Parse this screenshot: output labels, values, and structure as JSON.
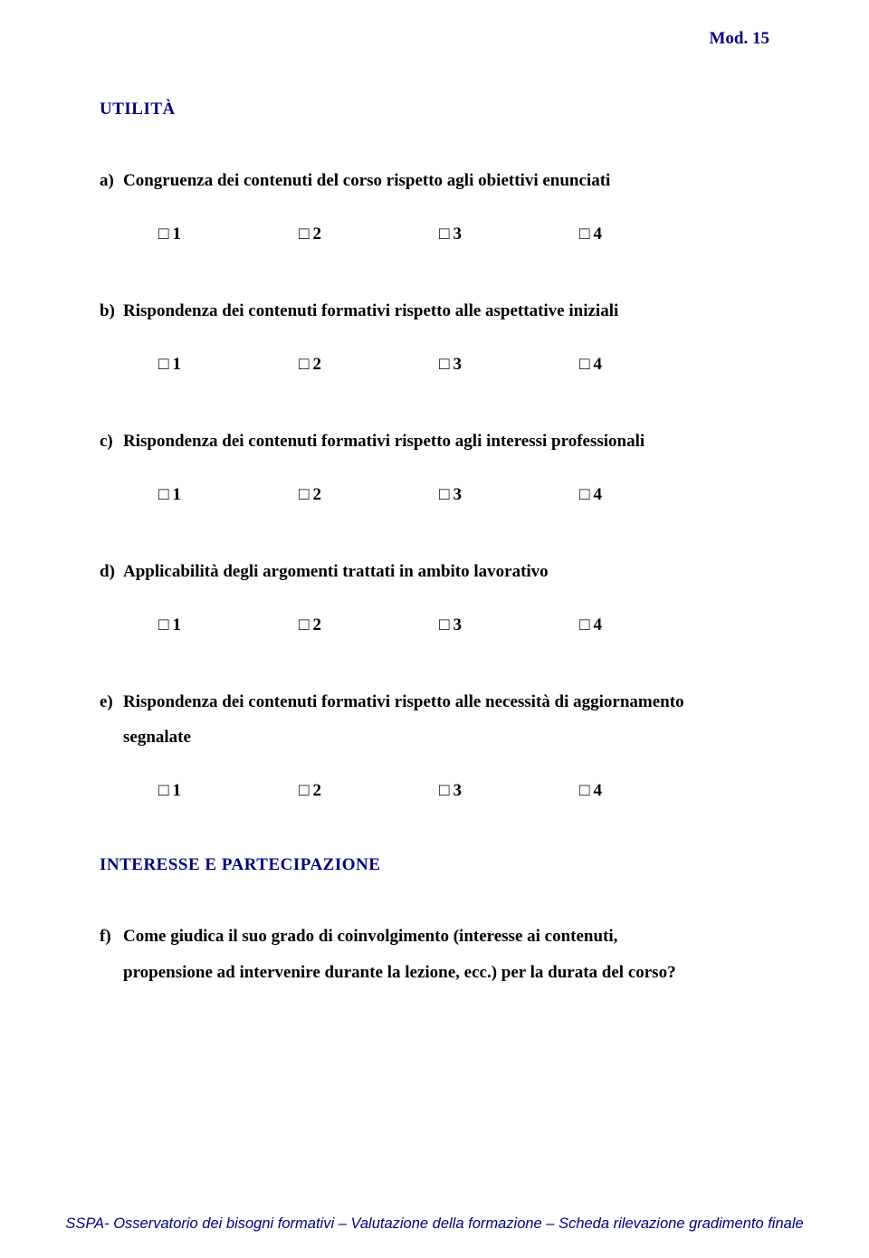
{
  "page": {
    "header_right": "Mod. 15",
    "footer": "SSPA- Osservatorio dei bisogni formativi – Valutazione della formazione – Scheda rilevazione gradimento finale",
    "colors": {
      "accent": "#000080",
      "text": "#000000",
      "background": "#ffffff"
    }
  },
  "section1": {
    "title": "UTILITÀ"
  },
  "scale": {
    "opt1": "1",
    "opt2": "2",
    "opt3": "3",
    "opt4": "4",
    "box_glyph": "□"
  },
  "qa": {
    "letter": "a)",
    "text": "Congruenza dei contenuti del corso rispetto agli obiettivi enunciati"
  },
  "qb": {
    "letter": "b)",
    "text": "Rispondenza dei contenuti formativi rispetto alle aspettative iniziali"
  },
  "qc": {
    "letter": "c)",
    "text": "Rispondenza dei contenuti formativi rispetto agli interessi professionali"
  },
  "qd": {
    "letter": "d)",
    "text": "Applicabilità degli argomenti trattati in ambito lavorativo"
  },
  "qe": {
    "letter": "e)",
    "text_line1": "Rispondenza dei contenuti formativi rispetto alle necessità di aggiornamento",
    "text_line2": "segnalate"
  },
  "section2": {
    "title": "INTERESSE E PARTECIPAZIONE"
  },
  "qf": {
    "letter": "f)",
    "text_line1": "Come giudica il suo grado di coinvolgimento (interesse ai contenuti,",
    "text_line2": "propensione ad intervenire durante la lezione, ecc.) per la durata del corso?"
  }
}
